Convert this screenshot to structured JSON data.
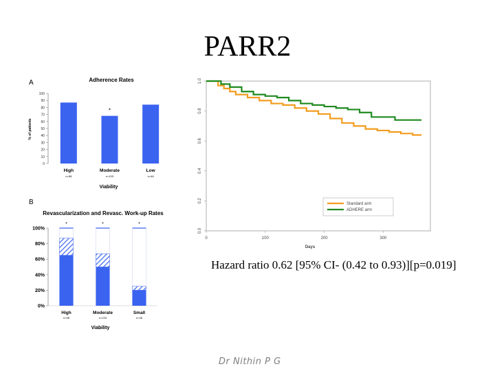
{
  "slide": {
    "title": "PARR2",
    "hazard_text": "Hazard ratio  0.62 [95% CI- (0.42 to 0.93)][p=0.019]",
    "author": "Dr Nithin P G"
  },
  "chart_data": [
    {
      "id": "panel-a",
      "type": "bar",
      "panel_label": "A",
      "title": "Adherence Rates",
      "ylabel": "% of patients",
      "xlabel": "Viability",
      "ylim": [
        0,
        100
      ],
      "yticks": [
        0,
        10,
        20,
        30,
        40,
        50,
        60,
        70,
        80,
        90,
        100
      ],
      "categories": [
        "High",
        "Moderate",
        "Low"
      ],
      "category_notes": [
        "n=58",
        "n=103",
        "n=46"
      ],
      "values": [
        87,
        68,
        84
      ],
      "annotations": [
        "",
        "*",
        ""
      ],
      "color": "#3a63f0"
    },
    {
      "id": "panel-b",
      "type": "bar",
      "panel_label": "B",
      "title": "Revascularization and Revasc. Work-up Rates",
      "xlabel": "Viability",
      "ylim": [
        0,
        100
      ],
      "yticks": [
        "0%",
        "20%",
        "40%",
        "60%",
        "80%",
        "100%"
      ],
      "categories": [
        "High",
        "Moderate",
        "Small"
      ],
      "category_notes": [
        "n=58",
        "n=103",
        "n=46"
      ],
      "series": [
        {
          "name": "",
          "values": [
            65,
            50,
            20
          ],
          "pattern": "solid",
          "color": "#3a63f0"
        },
        {
          "name": "",
          "values": [
            22,
            17,
            5
          ],
          "pattern": "hatched",
          "color": "#3a63f0"
        }
      ],
      "annotations": [
        "*",
        "*",
        "*"
      ]
    },
    {
      "id": "km-curve",
      "type": "line",
      "xlabel": "Days",
      "ylabel": "",
      "xlim": [
        0,
        380
      ],
      "ylim": [
        0,
        1.0
      ],
      "xticks": [
        0,
        100,
        200,
        300
      ],
      "yticks": [
        "0.0",
        "0.2",
        "0.4",
        "0.6",
        "0.8",
        "1.0"
      ],
      "legend_position": "bottom-right",
      "series": [
        {
          "name": "Standard arm",
          "color": "#f39c1e",
          "points": [
            [
              0,
              1.0
            ],
            [
              15,
              1.0
            ],
            [
              20,
              0.97
            ],
            [
              30,
              0.95
            ],
            [
              40,
              0.93
            ],
            [
              50,
              0.91
            ],
            [
              70,
              0.89
            ],
            [
              90,
              0.87
            ],
            [
              110,
              0.85
            ],
            [
              130,
              0.84
            ],
            [
              150,
              0.82
            ],
            [
              170,
              0.8
            ],
            [
              190,
              0.78
            ],
            [
              210,
              0.75
            ],
            [
              230,
              0.72
            ],
            [
              250,
              0.7
            ],
            [
              270,
              0.68
            ],
            [
              290,
              0.67
            ],
            [
              310,
              0.66
            ],
            [
              330,
              0.65
            ],
            [
              350,
              0.64
            ],
            [
              365,
              0.64
            ]
          ]
        },
        {
          "name": "ADHERE arm",
          "color": "#1f8a1f",
          "points": [
            [
              0,
              1.0
            ],
            [
              20,
              1.0
            ],
            [
              25,
              0.98
            ],
            [
              40,
              0.96
            ],
            [
              60,
              0.93
            ],
            [
              80,
              0.91
            ],
            [
              100,
              0.9
            ],
            [
              120,
              0.89
            ],
            [
              140,
              0.87
            ],
            [
              160,
              0.85
            ],
            [
              180,
              0.84
            ],
            [
              200,
              0.83
            ],
            [
              220,
              0.82
            ],
            [
              240,
              0.81
            ],
            [
              260,
              0.79
            ],
            [
              280,
              0.76
            ],
            [
              300,
              0.76
            ],
            [
              320,
              0.74
            ],
            [
              340,
              0.74
            ],
            [
              365,
              0.74
            ]
          ]
        }
      ]
    }
  ]
}
